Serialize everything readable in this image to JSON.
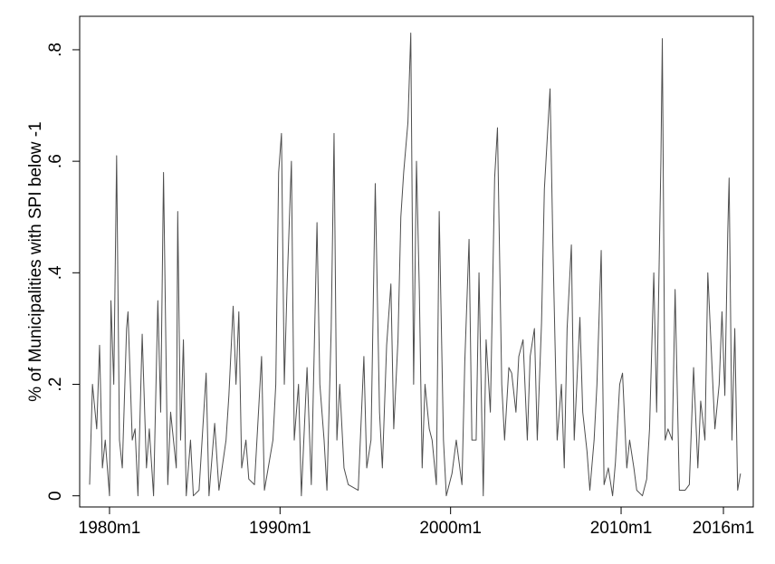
{
  "chart_data": {
    "type": "line",
    "y_label": "% of Municipalities with SPI below -1",
    "x": [
      "1978m11",
      "1979m1",
      "1979m4",
      "1979m6",
      "1979m8",
      "1979m10",
      "1980m1",
      "1980m2",
      "1980m4",
      "1980m6",
      "1980m8",
      "1980m10",
      "1981m1",
      "1981m2",
      "1981m5",
      "1981m7",
      "1981m9",
      "1981m12",
      "1982m3",
      "1982m5",
      "1982m8",
      "1982m11",
      "1983m1",
      "1983m3",
      "1983m6",
      "1983m8",
      "1983m12",
      "1984m1",
      "1984m3",
      "1984m5",
      "1984m7",
      "1984m10",
      "1984m12",
      "1985m4",
      "1985m9",
      "1985m11",
      "1986m3",
      "1986m6",
      "1986m11",
      "1987m1",
      "1987m4",
      "1987m6",
      "1987m8",
      "1987m10",
      "1988m1",
      "1988m3",
      "1988m7",
      "1988m12",
      "1989m2",
      "1989m8",
      "1989m10",
      "1989m12",
      "1990m2",
      "1990m4",
      "1990m6",
      "1990m9",
      "1990m11",
      "1991m2",
      "1991m4",
      "1991m8",
      "1991m11",
      "1992m3",
      "1992m5",
      "1992m8",
      "1992m10",
      "1993m1",
      "1993m3",
      "1993m5",
      "1993m7",
      "1993m10",
      "1994m1",
      "1994m8",
      "1994m12",
      "1995m2",
      "1995m5",
      "1995m8",
      "1995m11",
      "1996m1",
      "1996m4",
      "1996m7",
      "1996m9",
      "1996m12",
      "1997m2",
      "1997m4",
      "1997m7",
      "1997m9",
      "1997m11",
      "1998m1",
      "1998m3",
      "1998m5",
      "1998m7",
      "1998m10",
      "1998m12",
      "1999m3",
      "1999m5",
      "1999m8",
      "1999m10",
      "2000m2",
      "2000m5",
      "2000m9",
      "2000m11",
      "2001m2",
      "2001m4",
      "2001m7",
      "2001m9",
      "2001m12",
      "2002m2",
      "2002m5",
      "2002m8",
      "2002m10",
      "2003m1",
      "2003m3",
      "2003m6",
      "2003m8",
      "2003m11",
      "2004m1",
      "2004m4",
      "2004m7",
      "2004m9",
      "2004m12",
      "2005m2",
      "2005m5",
      "2005m7",
      "2005m11",
      "2006m1",
      "2006m4",
      "2006m7",
      "2006m9",
      "2006m11",
      "2007m2",
      "2007m4",
      "2007m8",
      "2007m10",
      "2008m1",
      "2008m3",
      "2008m6",
      "2008m8",
      "2008m11",
      "2009m1",
      "2009m4",
      "2009m7",
      "2009m9",
      "2009m12",
      "2010m2",
      "2010m5",
      "2010m7",
      "2010m10",
      "2010m12",
      "2011m4",
      "2011m7",
      "2011m9",
      "2011m12",
      "2012m2",
      "2012m5",
      "2012m6",
      "2012m8",
      "2012m10",
      "2013m1",
      "2013m3",
      "2013m6",
      "2013m10",
      "2014m1",
      "2014m4",
      "2014m7",
      "2014m9",
      "2014m12",
      "2015m2",
      "2015m5",
      "2015m7",
      "2015m10",
      "2015m12",
      "2016m2",
      "2016m4",
      "2016m5",
      "2016m7",
      "2016m9",
      "2016m11",
      "2017m1"
    ],
    "values": [
      0.02,
      0.2,
      0.12,
      0.27,
      0.05,
      0.1,
      0,
      0.35,
      0.2,
      0.61,
      0.1,
      0.05,
      0.3,
      0.33,
      0.1,
      0.12,
      0,
      0.29,
      0.05,
      0.12,
      0,
      0.35,
      0.15,
      0.58,
      0.02,
      0.15,
      0.05,
      0.51,
      0.1,
      0.28,
      0,
      0.1,
      0,
      0.01,
      0.22,
      0,
      0.13,
      0.01,
      0.1,
      0.18,
      0.34,
      0.2,
      0.33,
      0.05,
      0.1,
      0.03,
      0.02,
      0.25,
      0.01,
      0.1,
      0.2,
      0.58,
      0.65,
      0.2,
      0.38,
      0.6,
      0.1,
      0.2,
      0,
      0.23,
      0.02,
      0.49,
      0.2,
      0.1,
      0.01,
      0.3,
      0.65,
      0.1,
      0.2,
      0.05,
      0.02,
      0.01,
      0.25,
      0.05,
      0.1,
      0.56,
      0.15,
      0.05,
      0.27,
      0.38,
      0.12,
      0.28,
      0.5,
      0.58,
      0.67,
      0.83,
      0.2,
      0.6,
      0.37,
      0.05,
      0.2,
      0.12,
      0.1,
      0.02,
      0.51,
      0.1,
      0,
      0.04,
      0.1,
      0.02,
      0.24,
      0.46,
      0.1,
      0.1,
      0.4,
      0,
      0.28,
      0.15,
      0.57,
      0.66,
      0.2,
      0.1,
      0.23,
      0.22,
      0.15,
      0.25,
      0.28,
      0.1,
      0.25,
      0.3,
      0.1,
      0.31,
      0.55,
      0.73,
      0.45,
      0.1,
      0.2,
      0.05,
      0.3,
      0.45,
      0.1,
      0.32,
      0.15,
      0.08,
      0.01,
      0.1,
      0.2,
      0.44,
      0.02,
      0.05,
      0,
      0.06,
      0.2,
      0.22,
      0.05,
      0.1,
      0.05,
      0.01,
      0,
      0.03,
      0.12,
      0.4,
      0.15,
      0.6,
      0.82,
      0.1,
      0.12,
      0.1,
      0.37,
      0.01,
      0.01,
      0.02,
      0.23,
      0.05,
      0.17,
      0.1,
      0.4,
      0.23,
      0.12,
      0.2,
      0.33,
      0.18,
      0.47,
      0.57,
      0.1,
      0.3,
      0.01,
      0.04
    ],
    "color": "#4d4d4d",
    "xlim": [
      "1978m4",
      "2017m10"
    ],
    "xticks": [
      "1980m1",
      "1990m1",
      "2000m1",
      "2010m1",
      "2016m1"
    ],
    "ylim": [
      -0.02,
      0.86
    ],
    "yticks": [
      {
        "value": 0,
        "label": "0"
      },
      {
        "value": 0.2,
        "label": ".2"
      },
      {
        "value": 0.4,
        "label": ".4"
      },
      {
        "value": 0.6,
        "label": ".6"
      },
      {
        "value": 0.8,
        "label": ".8"
      }
    ]
  }
}
